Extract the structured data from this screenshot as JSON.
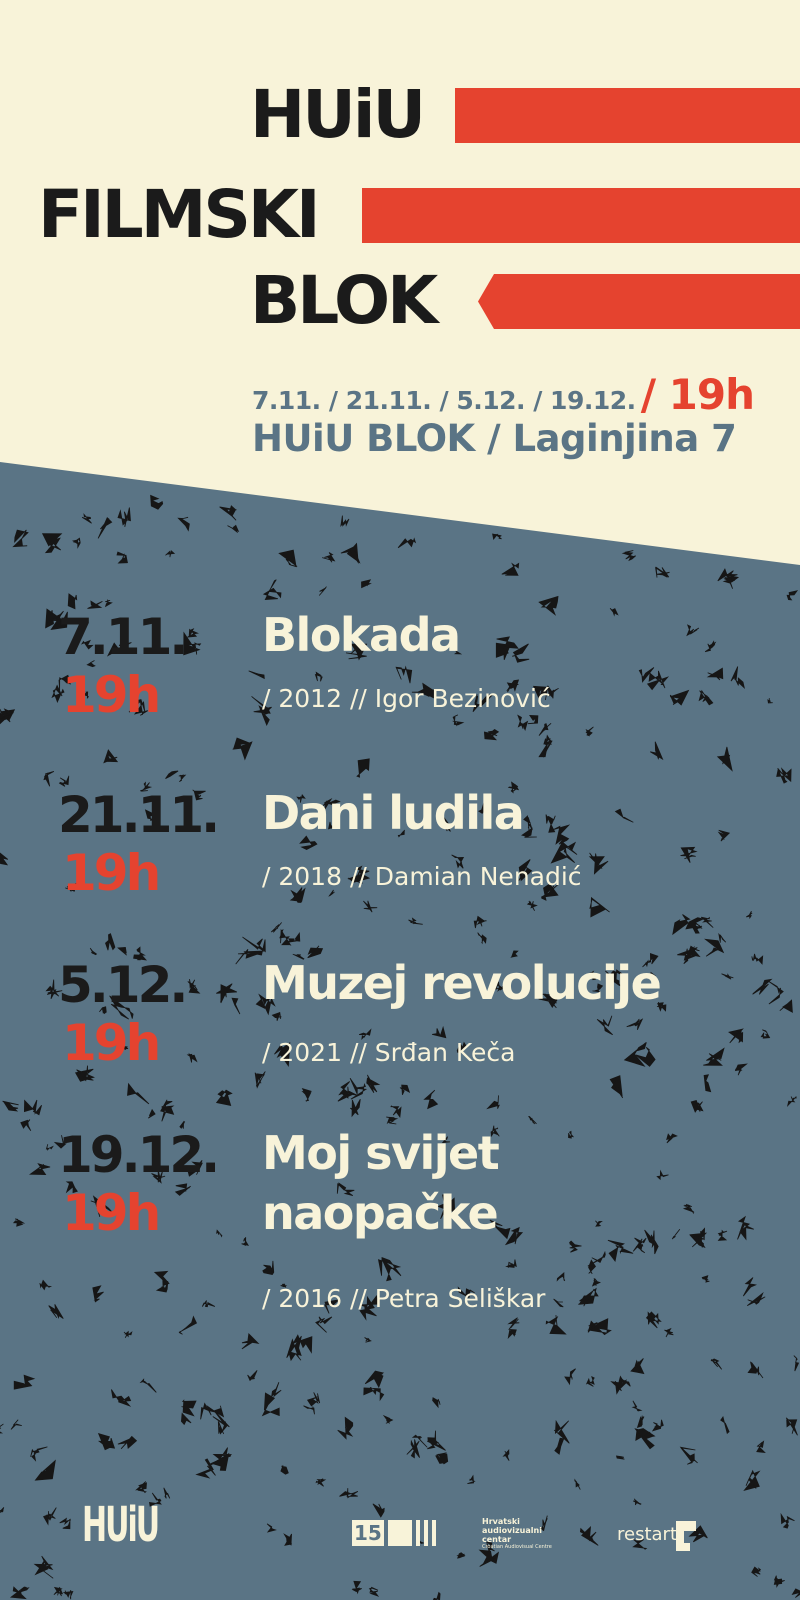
{
  "header": {
    "line1": "HUiU",
    "line2": "FILMSKI",
    "line3": "BLOK",
    "dates": "7.11. / 21.11. / 5.12. / 19.12.",
    "time": "/ 19h",
    "venue": "HUiU BLOK / Laginjina 7"
  },
  "films": [
    {
      "date": "7.11.",
      "time": "19h",
      "title": "Blokada",
      "title2": "",
      "year": "2012",
      "director": "Igor Bezinović"
    },
    {
      "date": "21.11.",
      "time": "19h",
      "title": "Dani ludila",
      "title2": "",
      "year": "2018",
      "director": "Damian Nenadić"
    },
    {
      "date": "5.12.",
      "time": "19h",
      "title": "Muzej revolucije",
      "title2": "",
      "year": "2021",
      "director": "Srđan Keča"
    },
    {
      "date": "19.12.",
      "time": "19h",
      "title": "Moj svijet",
      "title2": "naopačke",
      "year": "2016",
      "director": "Petra Seliškar"
    }
  ],
  "sponsors": {
    "huiu": "HUiU",
    "hac_number": "15",
    "hac_name_1": "Hrvatski",
    "hac_name_2": "audiovizualni",
    "hac_name_3": "centar",
    "hac_name_en": "Croatian Audiovisual Centre",
    "restart": "restart"
  },
  "colors": {
    "cream": "#f8f3d9",
    "red": "#e5432f",
    "slate": "#5a7485",
    "ink": "#1b1b1b"
  }
}
